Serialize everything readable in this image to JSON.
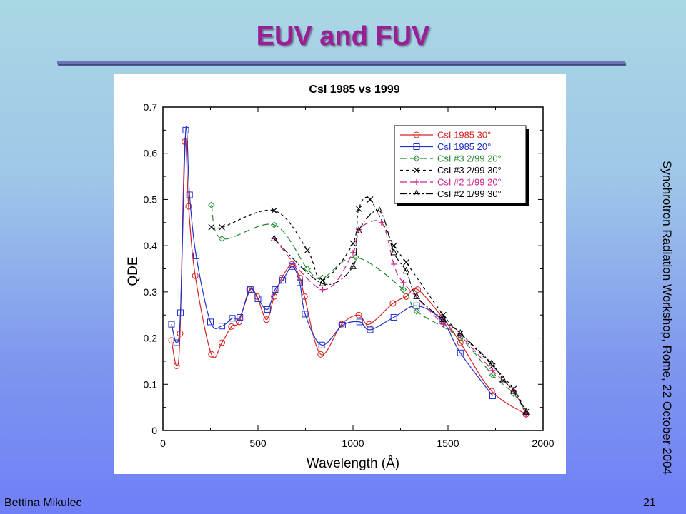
{
  "slide": {
    "title": "EUV and FUV",
    "side_text": "Synchrotron Radiation Workshop, Rome, 22 October 2004",
    "author": "Bettina Mikulec",
    "page_number": "21"
  },
  "chart_data": {
    "type": "line",
    "title": "CsI 1985 vs 1999",
    "xlabel": "Wavelength (Å)",
    "ylabel": "QDE",
    "xlim": [
      0,
      2000
    ],
    "ylim": [
      0,
      0.7
    ],
    "xticks": [
      0,
      500,
      1000,
      1500,
      2000
    ],
    "yticks": [
      0,
      0.1,
      0.2,
      0.3,
      0.4,
      0.5,
      0.6,
      0.7
    ],
    "grid": false,
    "legend_position": "top-right",
    "series": [
      {
        "name": "CsI 1985 30°",
        "color": "#d62020",
        "dash": "",
        "marker": "circle",
        "x": [
          45,
          72,
          90,
          115,
          135,
          170,
          255,
          310,
          360,
          400,
          455,
          495,
          545,
          585,
          625,
          680,
          720,
          745,
          830,
          940,
          1030,
          1085,
          1210,
          1280,
          1340,
          1470,
          1565,
          1730,
          1910
        ],
        "y": [
          0.195,
          0.14,
          0.21,
          0.625,
          0.485,
          0.335,
          0.165,
          0.19,
          0.225,
          0.235,
          0.305,
          0.29,
          0.24,
          0.29,
          0.33,
          0.36,
          0.33,
          0.29,
          0.165,
          0.23,
          0.25,
          0.23,
          0.275,
          0.29,
          0.305,
          0.245,
          0.19,
          0.085,
          0.035
        ]
      },
      {
        "name": "CsI 1985 20°",
        "color": "#2030c8",
        "dash": "",
        "marker": "square",
        "x": [
          45,
          72,
          92,
          120,
          140,
          175,
          250,
          310,
          365,
          405,
          460,
          500,
          550,
          590,
          630,
          680,
          720,
          748,
          835,
          945,
          1035,
          1090,
          1215,
          1335,
          1470,
          1565,
          1735
        ],
        "y": [
          0.23,
          0.19,
          0.255,
          0.65,
          0.51,
          0.378,
          0.235,
          0.226,
          0.243,
          0.245,
          0.305,
          0.285,
          0.262,
          0.305,
          0.325,
          0.355,
          0.32,
          0.252,
          0.185,
          0.228,
          0.235,
          0.218,
          0.245,
          0.27,
          0.238,
          0.168,
          0.075
        ]
      },
      {
        "name": "CsI #3 2/99 20°",
        "color": "#1f8a2a",
        "dash": "9 5",
        "marker": "diamond",
        "x": [
          255,
          310,
          585,
          760,
          840,
          1015,
          1265,
          1335,
          1565,
          1735,
          1845,
          1910
        ],
        "y": [
          0.488,
          0.415,
          0.445,
          0.35,
          0.33,
          0.375,
          0.305,
          0.258,
          0.2,
          0.12,
          0.08,
          0.038
        ]
      },
      {
        "name": "CsI #3 2/99 30°",
        "color": "#000000",
        "dash": "4 4",
        "marker": "x",
        "x": [
          255,
          310,
          585,
          760,
          840,
          1000,
          1030,
          1090,
          1215,
          1280,
          1475,
          1565,
          1735,
          1845,
          1910
        ],
        "y": [
          0.44,
          0.44,
          0.476,
          0.39,
          0.325,
          0.405,
          0.48,
          0.5,
          0.4,
          0.364,
          0.25,
          0.21,
          0.14,
          0.09,
          0.04
        ]
      },
      {
        "name": "CsI #2 1/99 20°",
        "color": "#d0208a",
        "dash": "9 5",
        "marker": "plus",
        "x": [
          585,
          840,
          1000,
          1030,
          1150,
          1215,
          1265,
          1475,
          1565,
          1735,
          1845,
          1910
        ],
        "y": [
          0.415,
          0.305,
          0.385,
          0.435,
          0.45,
          0.36,
          0.32,
          0.23,
          0.205,
          0.13,
          0.085,
          0.035
        ]
      },
      {
        "name": "CsI #2 1/99 30°",
        "color": "#000000",
        "dash": "10 3 2 3",
        "marker": "triangle",
        "x": [
          585,
          840,
          1000,
          1030,
          1140,
          1215,
          1280,
          1335,
          1475,
          1565,
          1730,
          1790,
          1845,
          1910
        ],
        "y": [
          0.415,
          0.318,
          0.355,
          0.432,
          0.475,
          0.385,
          0.345,
          0.29,
          0.24,
          0.21,
          0.145,
          0.11,
          0.085,
          0.04
        ]
      }
    ]
  }
}
